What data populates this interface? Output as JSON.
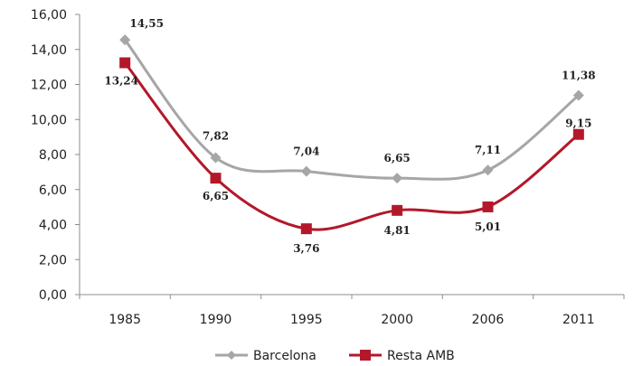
{
  "chart_data": {
    "type": "line",
    "categories": [
      "1985",
      "1990",
      "1995",
      "2000",
      "2006",
      "2011"
    ],
    "ylim": [
      0,
      16
    ],
    "yticks": [
      "0,00",
      "2,00",
      "4,00",
      "6,00",
      "8,00",
      "10,00",
      "12,00",
      "14,00",
      "16,00"
    ],
    "grid": false,
    "legend_position": "bottom",
    "series": [
      {
        "name": "Barcelona",
        "color": "#a6a6a6",
        "marker": "diamond",
        "values": [
          14.55,
          7.82,
          7.04,
          6.65,
          7.11,
          11.38
        ],
        "labels": [
          "14,55",
          "7,82",
          "7,04",
          "6,65",
          "7,11",
          "11,38"
        ]
      },
      {
        "name": "Resta AMB",
        "color": "#b3182a",
        "marker": "square",
        "values": [
          13.24,
          6.65,
          3.76,
          4.81,
          5.01,
          9.15
        ],
        "labels": [
          "13,24",
          "6,65",
          "3,76",
          "4,81",
          "5,01",
          "9,15"
        ]
      }
    ]
  }
}
